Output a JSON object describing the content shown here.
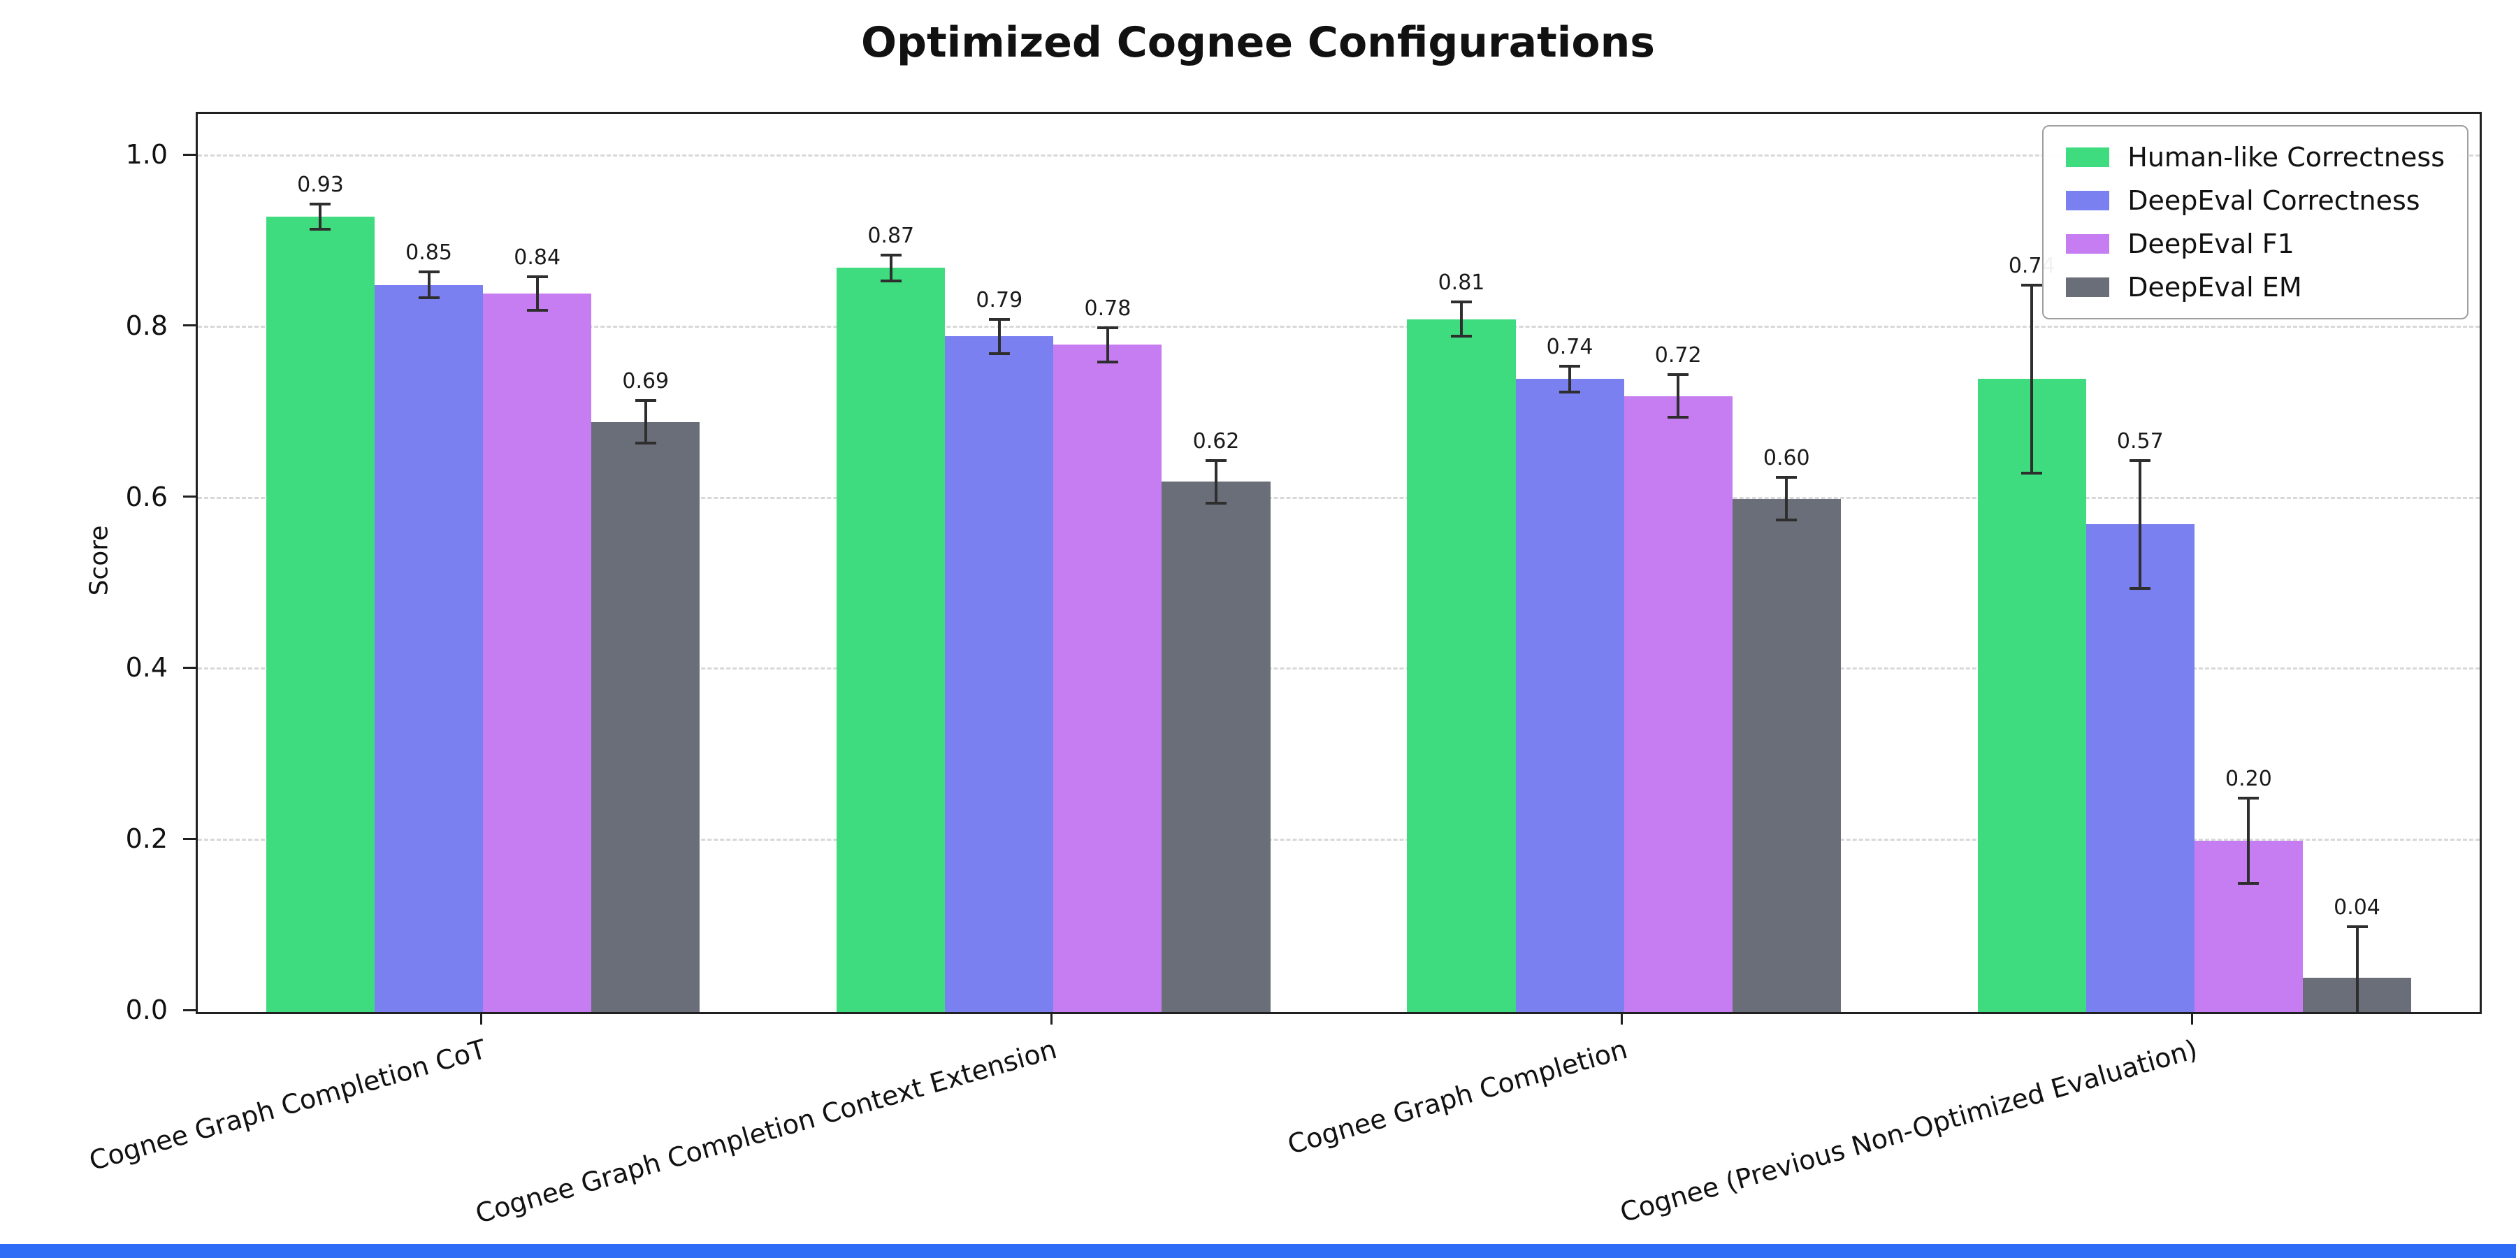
{
  "page": {
    "background": "#ffffff",
    "bottom_strip_color": "#2f6df6"
  },
  "chart_data": {
    "type": "bar",
    "title": "Optimized Cognee Configurations",
    "ylabel": "Score",
    "xlabel": "",
    "ylim": [
      0,
      1.05
    ],
    "yticks": [
      0,
      0.2,
      0.4,
      0.6,
      0.8,
      1.0
    ],
    "grid": "horizontal dashed gridlines",
    "legend_position": "upper right",
    "error_bar_color": "#2e2e2e",
    "categories": [
      "Cognee Graph Completion CoT",
      "Cognee Graph Completion Context Extension",
      "Cognee Graph Completion",
      "Cognee (Previous Non-Optimized Evaluation)"
    ],
    "series": [
      {
        "name": "Human-like Correctness",
        "color": "#3edc7e",
        "values": [
          0.93,
          0.87,
          0.81,
          0.74
        ],
        "errors": [
          0.015,
          0.015,
          0.02,
          0.11
        ]
      },
      {
        "name": "DeepEval Correctness",
        "color": "#7b80f0",
        "values": [
          0.85,
          0.79,
          0.74,
          0.57
        ],
        "errors": [
          0.015,
          0.02,
          0.015,
          0.075
        ]
      },
      {
        "name": "DeepEval F1",
        "color": "#c77df2",
        "values": [
          0.84,
          0.78,
          0.72,
          0.2
        ],
        "errors": [
          0.02,
          0.02,
          0.025,
          0.05
        ]
      },
      {
        "name": "DeepEval EM",
        "color": "#6a6e78",
        "values": [
          0.69,
          0.62,
          0.6,
          0.04
        ],
        "errors": [
          0.025,
          0.025,
          0.025,
          0.06
        ]
      }
    ]
  }
}
